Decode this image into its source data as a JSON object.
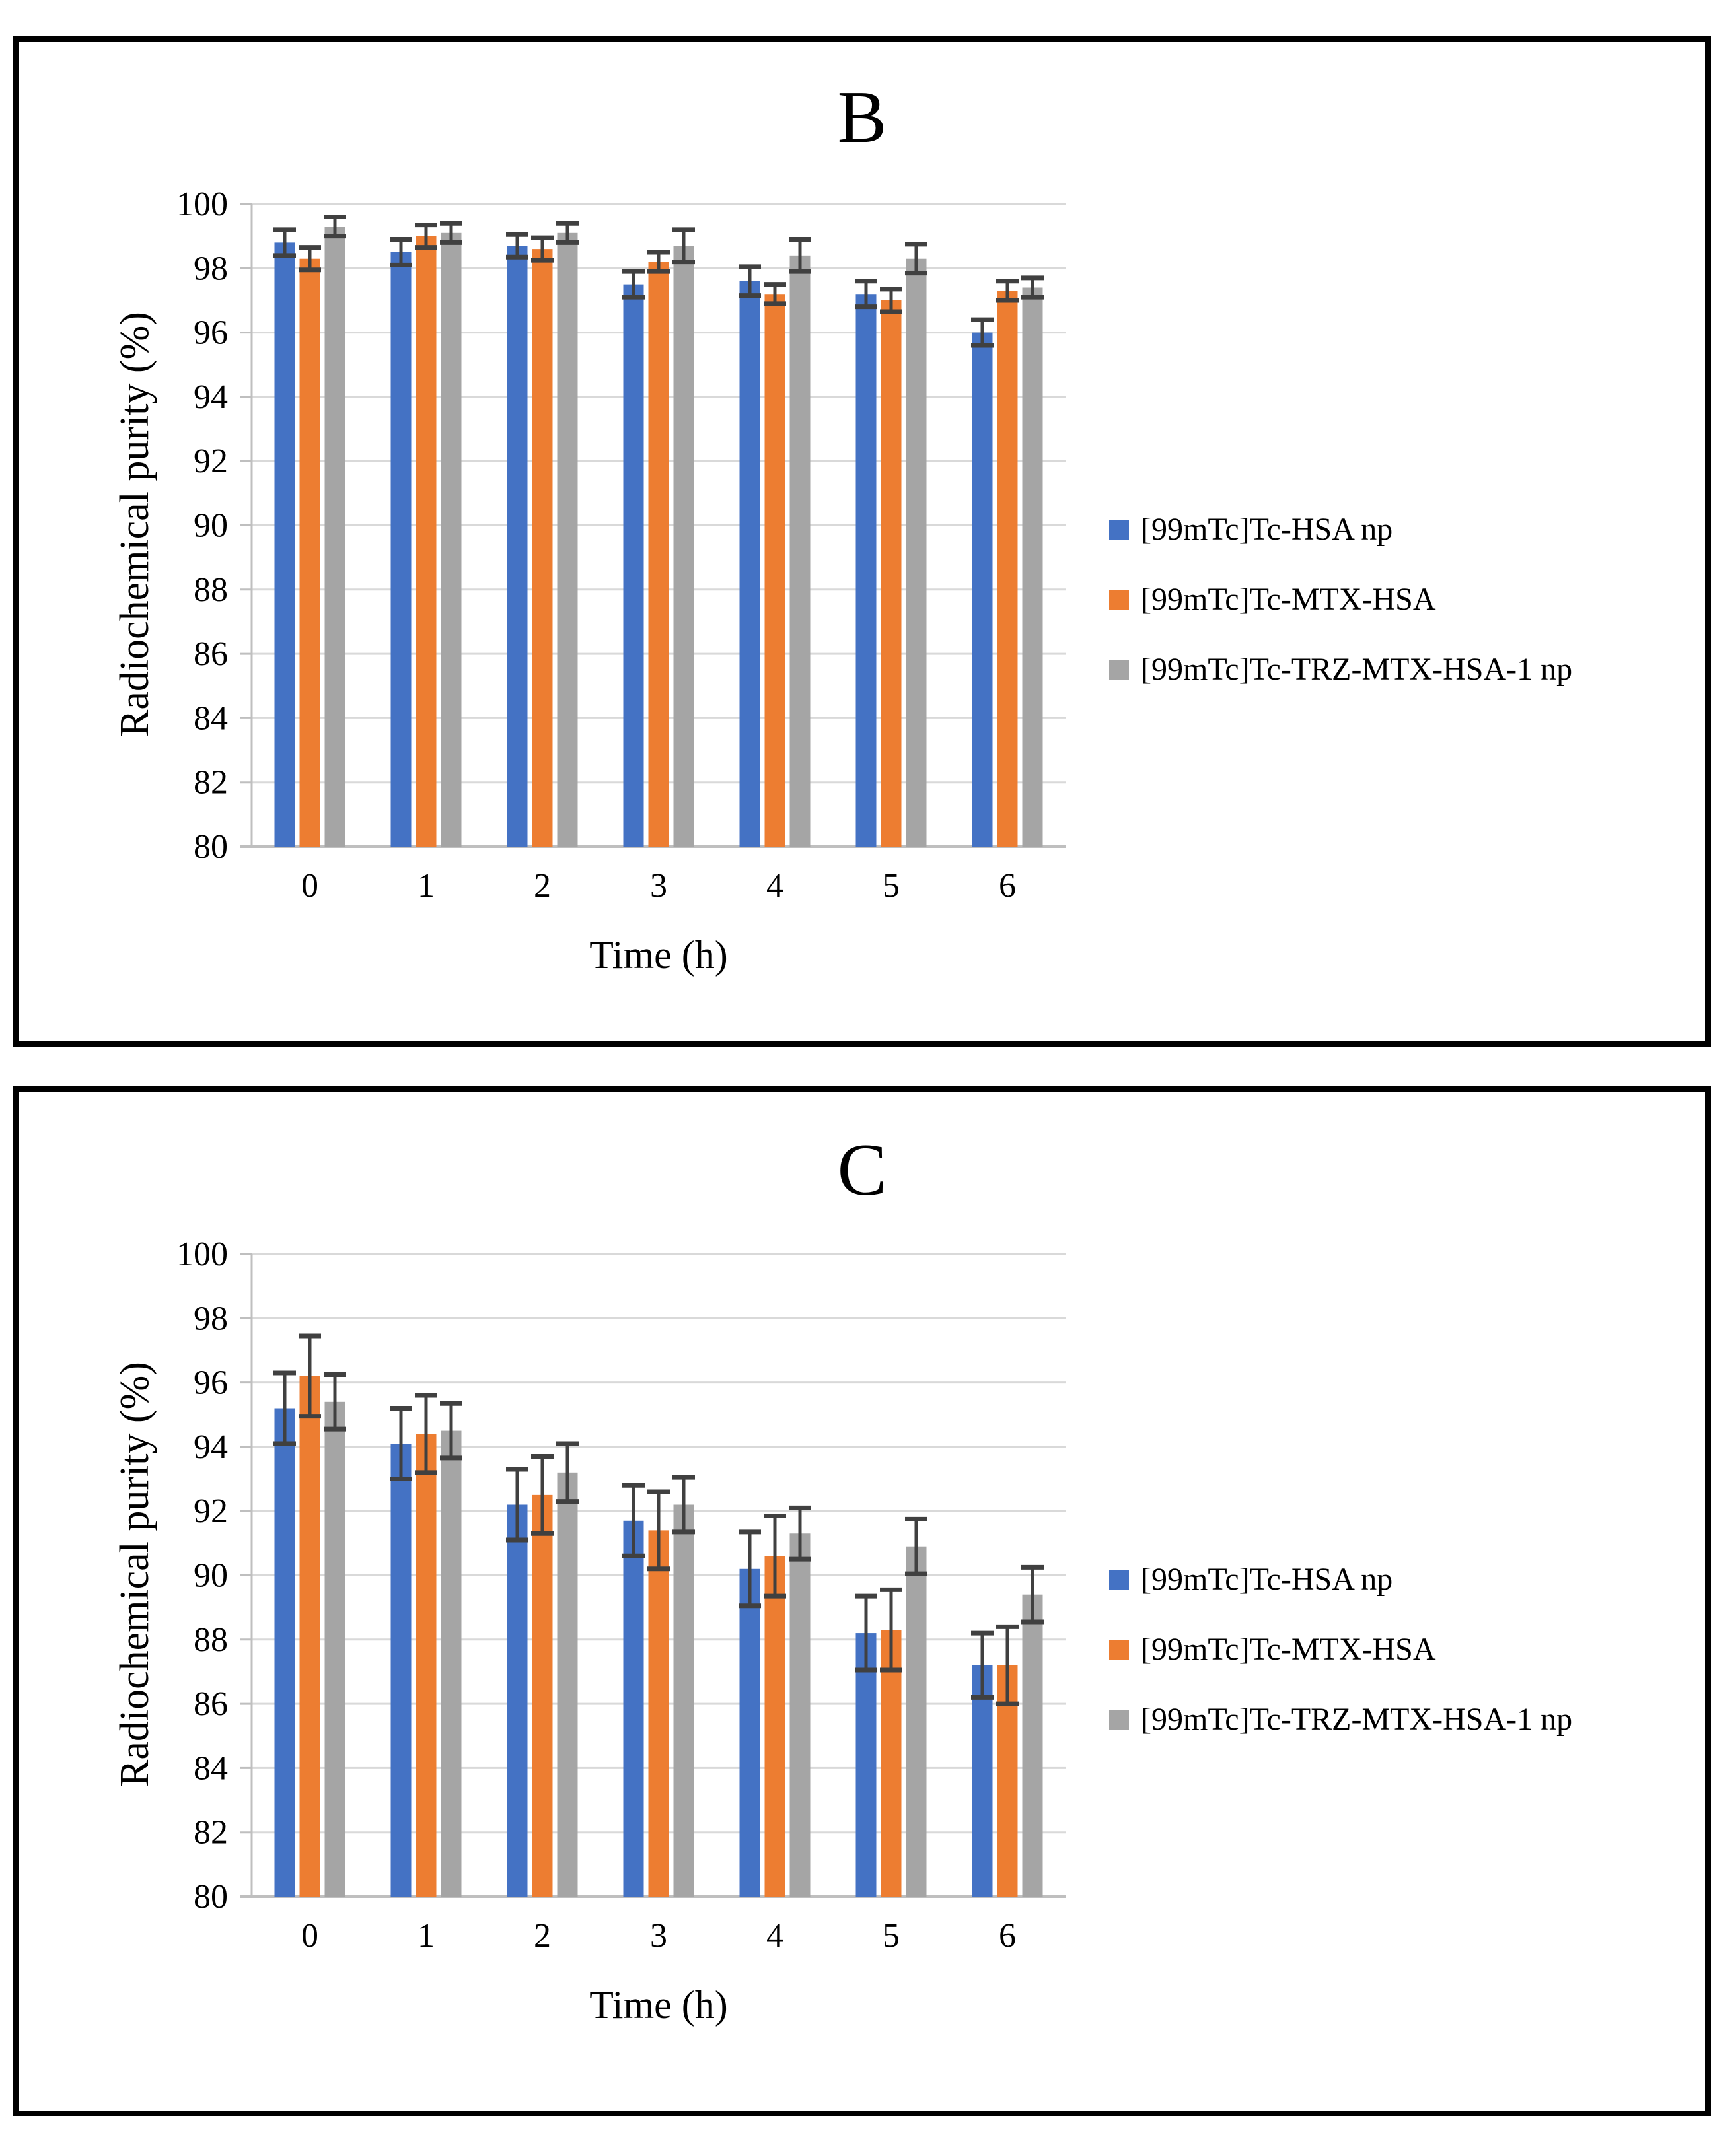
{
  "figure": {
    "background": "#ffffff",
    "panel_border_color": "#000000"
  },
  "colors": {
    "error_bar": "#404040",
    "gridline": "#D9D9D9",
    "axis_line": "#BFBFBF",
    "text": "#000000"
  },
  "chart_data": [
    {
      "type": "bar",
      "title": "B",
      "xlabel": "Time (h)",
      "ylabel": "Radiochemical purity (%)",
      "categories": [
        "0",
        "1",
        "2",
        "3",
        "4",
        "5",
        "6"
      ],
      "ylim": [
        80,
        100
      ],
      "y_ticks": [
        80,
        82,
        84,
        86,
        88,
        90,
        92,
        94,
        96,
        98,
        100
      ],
      "grid": "horizontal",
      "legend_position": "right",
      "error_bars": true,
      "series": [
        {
          "name": "[99mTc]Tc-HSA np",
          "color": "#4472C4",
          "values": [
            98.8,
            98.5,
            98.7,
            97.5,
            97.6,
            97.2,
            96.0
          ],
          "errors": [
            0.4,
            0.4,
            0.35,
            0.4,
            0.45,
            0.4,
            0.4
          ]
        },
        {
          "name": "[99mTc]Tc-MTX-HSA",
          "color": "#ED7D31",
          "values": [
            98.3,
            99.0,
            98.6,
            98.2,
            97.2,
            97.0,
            97.3
          ],
          "errors": [
            0.35,
            0.35,
            0.35,
            0.3,
            0.3,
            0.35,
            0.3
          ]
        },
        {
          "name": "[99mTc]Tc-TRZ-MTX-HSA-1 np",
          "color": "#A5A5A5",
          "values": [
            99.3,
            99.1,
            99.1,
            98.7,
            98.4,
            98.3,
            97.4
          ],
          "errors": [
            0.3,
            0.3,
            0.3,
            0.5,
            0.5,
            0.45,
            0.3
          ]
        }
      ]
    },
    {
      "type": "bar",
      "title": "C",
      "xlabel": "Time (h)",
      "ylabel": "Radiochemical purity (%)",
      "categories": [
        "0",
        "1",
        "2",
        "3",
        "4",
        "5",
        "6"
      ],
      "ylim": [
        80,
        100
      ],
      "y_ticks": [
        80,
        82,
        84,
        86,
        88,
        90,
        92,
        94,
        96,
        98,
        100
      ],
      "grid": "horizontal",
      "legend_position": "right",
      "error_bars": true,
      "series": [
        {
          "name": "[99mTc]Tc-HSA np",
          "color": "#4472C4",
          "values": [
            95.2,
            94.1,
            92.2,
            91.7,
            90.2,
            88.2,
            87.2
          ],
          "errors": [
            1.1,
            1.1,
            1.1,
            1.1,
            1.15,
            1.15,
            1.0
          ]
        },
        {
          "name": "[99mTc]Tc-MTX-HSA",
          "color": "#ED7D31",
          "values": [
            96.2,
            94.4,
            92.5,
            91.4,
            90.6,
            88.3,
            87.2
          ],
          "errors": [
            1.25,
            1.2,
            1.2,
            1.2,
            1.25,
            1.25,
            1.2
          ]
        },
        {
          "name": "[99mTc]Tc-TRZ-MTX-HSA-1 np",
          "color": "#A5A5A5",
          "values": [
            95.4,
            94.5,
            93.2,
            92.2,
            91.3,
            90.9,
            89.4
          ],
          "errors": [
            0.85,
            0.85,
            0.9,
            0.85,
            0.8,
            0.85,
            0.85
          ]
        }
      ]
    }
  ]
}
